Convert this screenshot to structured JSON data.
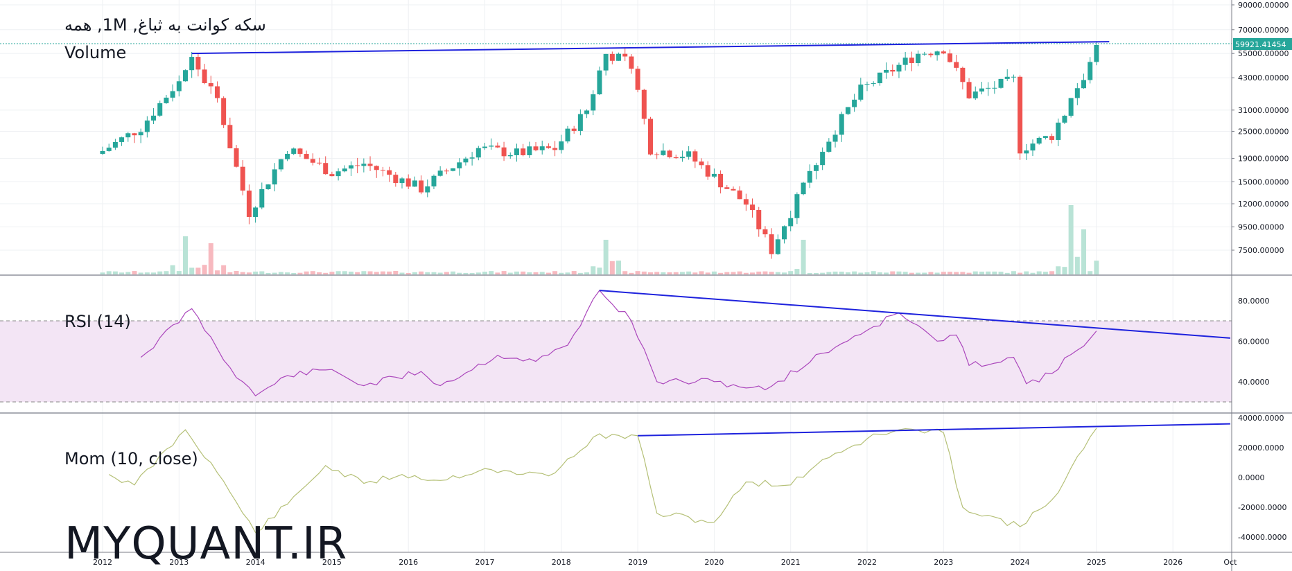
{
  "header": {
    "title": "سکه کوانت به ثباغ, 1M, همه",
    "volume_label": "Volume",
    "watermark": "MYQUANT.IR"
  },
  "price_badge": {
    "value": "59921.41454",
    "color": "#26a69a"
  },
  "colors": {
    "up": "#26a69a",
    "down": "#ef5350",
    "vol_up": "#b9e3d6",
    "vol_down": "#f7b9bf",
    "rsi_line": "#ab47bc",
    "rsi_band": "#f3e5f5",
    "mom_line": "#b5c077",
    "trendline": "#1e22dd"
  },
  "chart_data": [
    {
      "type": "candlestick",
      "title": "سکه کوانت به ثباغ, 1M, همه",
      "interval": "1M",
      "scale": "log",
      "price_axis_ticks": [
        "90000.00000",
        "70000.00000",
        "55000.00000",
        "43000.00000",
        "31000.00000",
        "25000.00000",
        "19000.00000",
        "15000.00000",
        "12000.00000",
        "9500.00000",
        "7500.00000"
      ],
      "time_axis_ticks": [
        "2012",
        "2013",
        "2014",
        "2015",
        "2016",
        "2017",
        "2018",
        "2019",
        "2020",
        "2021",
        "2022",
        "2023",
        "2024",
        "2025",
        "2026",
        "Oct"
      ],
      "last_price": 59921.41454,
      "approx_closes": [
        {
          "date": "2012-01",
          "value": 20500
        },
        {
          "date": "2012-07",
          "value": 26000
        },
        {
          "date": "2013-01",
          "value": 42000
        },
        {
          "date": "2013-03",
          "value": 52000
        },
        {
          "date": "2013-07",
          "value": 34000
        },
        {
          "date": "2013-12",
          "value": 11000
        },
        {
          "date": "2014-06",
          "value": 21000
        },
        {
          "date": "2015-01",
          "value": 16500
        },
        {
          "date": "2015-06",
          "value": 18000
        },
        {
          "date": "2016-03",
          "value": 14000
        },
        {
          "date": "2016-12",
          "value": 21000
        },
        {
          "date": "2017-06",
          "value": 20000
        },
        {
          "date": "2017-12",
          "value": 21000
        },
        {
          "date": "2018-05",
          "value": 31000
        },
        {
          "date": "2018-08",
          "value": 55000
        },
        {
          "date": "2018-12",
          "value": 50000
        },
        {
          "date": "2019-03",
          "value": 21000
        },
        {
          "date": "2019-09",
          "value": 19500
        },
        {
          "date": "2020-06",
          "value": 12000
        },
        {
          "date": "2020-10",
          "value": 7500
        },
        {
          "date": "2021-06",
          "value": 21000
        },
        {
          "date": "2021-12",
          "value": 38000
        },
        {
          "date": "2022-09",
          "value": 55000
        },
        {
          "date": "2023-01",
          "value": 58000
        },
        {
          "date": "2023-05",
          "value": 36000
        },
        {
          "date": "2023-12",
          "value": 42000
        },
        {
          "date": "2024-01",
          "value": 21000
        },
        {
          "date": "2024-06",
          "value": 24000
        },
        {
          "date": "2024-12",
          "value": 50000
        },
        {
          "date": "2025-01",
          "value": 59921
        }
      ],
      "volume_spikes": [
        {
          "date": "2013-02",
          "value": 0.55
        },
        {
          "date": "2013-06",
          "value": 0.45
        },
        {
          "date": "2018-08",
          "value": 0.5
        },
        {
          "date": "2021-03",
          "value": 0.5
        },
        {
          "date": "2024-09",
          "value": 1.0
        },
        {
          "date": "2024-11",
          "value": 0.65
        }
      ],
      "trendlines": [
        {
          "from": {
            "date": "2013-03",
            "value": 55000
          },
          "to": {
            "date": "2025-03",
            "value": 62000
          }
        }
      ]
    },
    {
      "type": "line",
      "title": "RSI (14)",
      "series": [
        {
          "name": "RSI (14)",
          "values": [
            {
              "date": "2012-07",
              "value": 52
            },
            {
              "date": "2013-03",
              "value": 76
            },
            {
              "date": "2013-09",
              "value": 47
            },
            {
              "date": "2014-01",
              "value": 33
            },
            {
              "date": "2014-06",
              "value": 43
            },
            {
              "date": "2015-01",
              "value": 46
            },
            {
              "date": "2015-06",
              "value": 38
            },
            {
              "date": "2016-03",
              "value": 45
            },
            {
              "date": "2016-06",
              "value": 38
            },
            {
              "date": "2017-03",
              "value": 53
            },
            {
              "date": "2017-09",
              "value": 50
            },
            {
              "date": "2018-02",
              "value": 58
            },
            {
              "date": "2018-07",
              "value": 85
            },
            {
              "date": "2018-12",
              "value": 70
            },
            {
              "date": "2019-04",
              "value": 40
            },
            {
              "date": "2020-01",
              "value": 40
            },
            {
              "date": "2020-09",
              "value": 36
            },
            {
              "date": "2021-06",
              "value": 54
            },
            {
              "date": "2022-06",
              "value": 74
            },
            {
              "date": "2022-12",
              "value": 60
            },
            {
              "date": "2023-03",
              "value": 63
            },
            {
              "date": "2023-05",
              "value": 48
            },
            {
              "date": "2023-12",
              "value": 52
            },
            {
              "date": "2024-02",
              "value": 39
            },
            {
              "date": "2024-06",
              "value": 44
            },
            {
              "date": "2025-01",
              "value": 65
            }
          ]
        }
      ],
      "axis_ticks": [
        "80.0000",
        "60.0000",
        "40.0000"
      ],
      "bands": [
        30,
        70
      ],
      "trendlines": [
        {
          "from": {
            "date": "2018-07",
            "value": 85
          },
          "to": {
            "date": "2026-10",
            "value": 61.5
          }
        }
      ]
    },
    {
      "type": "line",
      "title": "Mom (10, close)",
      "series": [
        {
          "name": "Mom (10, close)",
          "values": [
            {
              "date": "2012-02",
              "value": 2000
            },
            {
              "date": "2012-06",
              "value": -5000
            },
            {
              "date": "2013-02",
              "value": 32000
            },
            {
              "date": "2013-06",
              "value": 10000
            },
            {
              "date": "2014-01",
              "value": -37000
            },
            {
              "date": "2014-06",
              "value": -18000
            },
            {
              "date": "2014-12",
              "value": 8000
            },
            {
              "date": "2015-06",
              "value": -4000
            },
            {
              "date": "2015-12",
              "value": 2000
            },
            {
              "date": "2016-06",
              "value": -2000
            },
            {
              "date": "2017-01",
              "value": 6000
            },
            {
              "date": "2017-06",
              "value": 2000
            },
            {
              "date": "2017-12",
              "value": 3000
            },
            {
              "date": "2018-06",
              "value": 27000
            },
            {
              "date": "2019-01",
              "value": 28000
            },
            {
              "date": "2019-04",
              "value": -24000
            },
            {
              "date": "2020-01",
              "value": -30000
            },
            {
              "date": "2020-06",
              "value": -3000
            },
            {
              "date": "2021-01",
              "value": -5000
            },
            {
              "date": "2021-06",
              "value": 12000
            },
            {
              "date": "2022-01",
              "value": 26000
            },
            {
              "date": "2022-06",
              "value": 32000
            },
            {
              "date": "2023-01",
              "value": 30000
            },
            {
              "date": "2023-04",
              "value": -20000
            },
            {
              "date": "2024-01",
              "value": -33000
            },
            {
              "date": "2024-06",
              "value": -15000
            },
            {
              "date": "2025-01",
              "value": 33000
            }
          ]
        }
      ],
      "axis_ticks": [
        "40000.0000",
        "20000.0000",
        "0.0000",
        "-20000.0000",
        "-40000.0000"
      ],
      "trendlines": [
        {
          "from": {
            "date": "2019-01",
            "value": 28000
          },
          "to": {
            "date": "2026-10",
            "value": 36000
          }
        }
      ]
    }
  ]
}
